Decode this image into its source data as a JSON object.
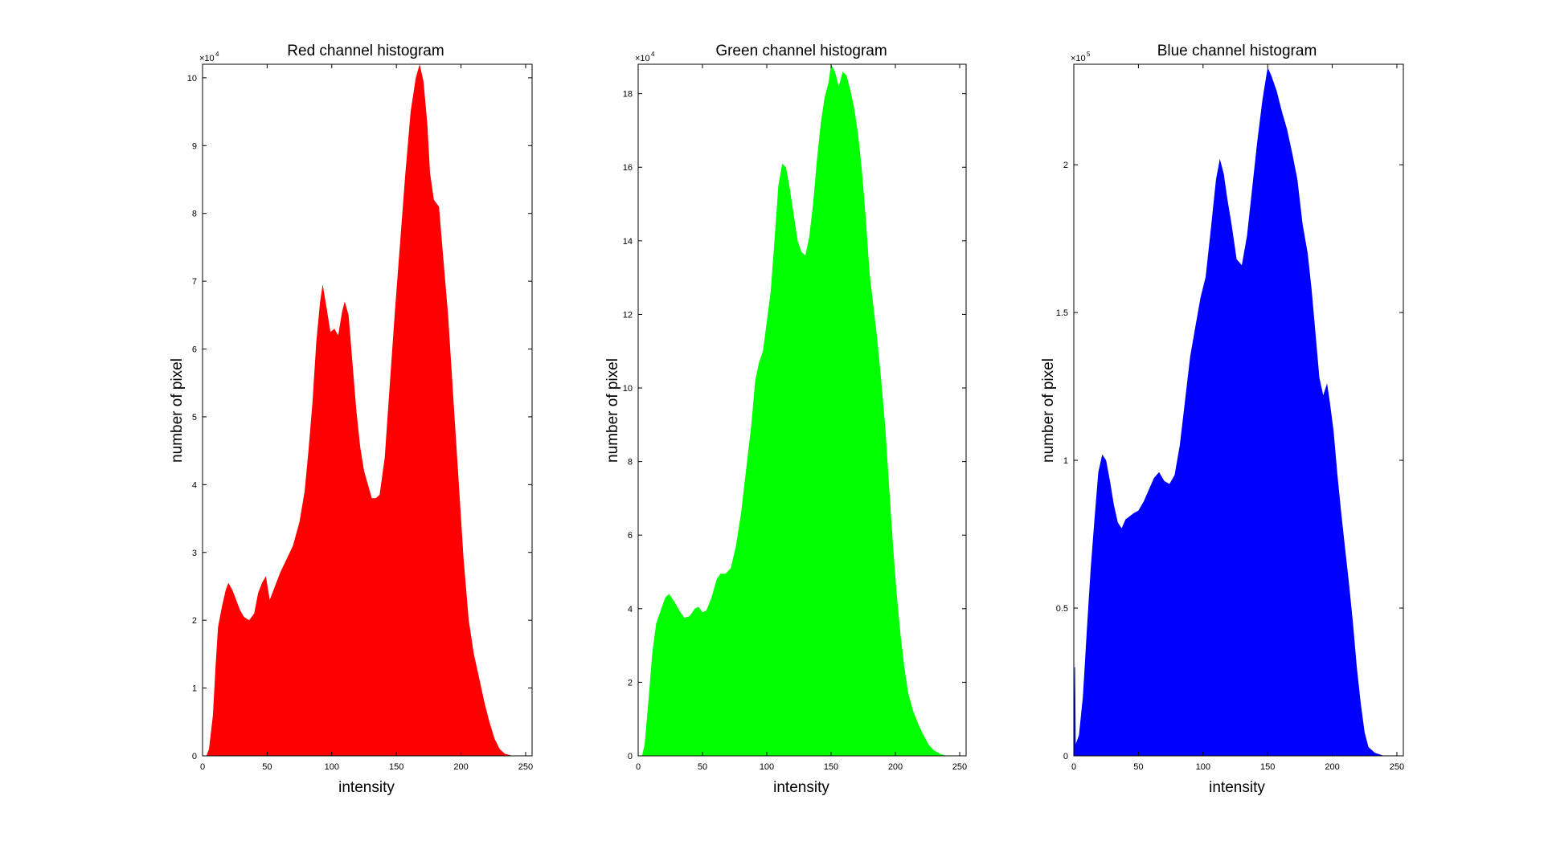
{
  "chart_data": [
    {
      "type": "area",
      "title": "Red channel histogram",
      "xlabel": "intensity",
      "ylabel": "number of pixel",
      "exponent_label": "×10",
      "exponent_value": "4",
      "color": "#ff0000",
      "xlim": [
        0,
        255
      ],
      "ylim": [
        0,
        10.2
      ],
      "x_ticks": [
        0,
        50,
        100,
        150,
        200,
        250
      ],
      "y_ticks": [
        0,
        1,
        2,
        3,
        4,
        5,
        6,
        7,
        8,
        9,
        10
      ],
      "x_tick_labels": [
        "0",
        "50",
        "100",
        "150",
        "200",
        "250"
      ],
      "y_tick_labels": [
        "0",
        "1",
        "2",
        "3",
        "4",
        "5",
        "6",
        "7",
        "8",
        "9",
        "10"
      ],
      "grid": false,
      "points": [
        [
          0,
          0
        ],
        [
          3,
          0
        ],
        [
          5,
          0.1
        ],
        [
          8,
          0.6
        ],
        [
          10,
          1.3
        ],
        [
          12,
          1.9
        ],
        [
          15,
          2.2
        ],
        [
          18,
          2.45
        ],
        [
          20,
          2.55
        ],
        [
          23,
          2.45
        ],
        [
          26,
          2.3
        ],
        [
          29,
          2.15
        ],
        [
          32,
          2.05
        ],
        [
          36,
          2.0
        ],
        [
          40,
          2.1
        ],
        [
          43,
          2.4
        ],
        [
          46,
          2.55
        ],
        [
          49,
          2.65
        ],
        [
          52,
          2.3
        ],
        [
          55,
          2.45
        ],
        [
          60,
          2.7
        ],
        [
          65,
          2.9
        ],
        [
          70,
          3.1
        ],
        [
          75,
          3.45
        ],
        [
          79,
          3.9
        ],
        [
          82,
          4.5
        ],
        [
          85,
          5.2
        ],
        [
          88,
          6.1
        ],
        [
          91,
          6.7
        ],
        [
          93,
          6.95
        ],
        [
          96,
          6.6
        ],
        [
          99,
          6.25
        ],
        [
          102,
          6.3
        ],
        [
          105,
          6.2
        ],
        [
          108,
          6.55
        ],
        [
          110,
          6.7
        ],
        [
          113,
          6.5
        ],
        [
          116,
          5.8
        ],
        [
          119,
          5.1
        ],
        [
          122,
          4.55
        ],
        [
          125,
          4.2
        ],
        [
          128,
          4.0
        ],
        [
          131,
          3.8
        ],
        [
          134,
          3.8
        ],
        [
          137,
          3.85
        ],
        [
          141,
          4.4
        ],
        [
          145,
          5.5
        ],
        [
          149,
          6.6
        ],
        [
          153,
          7.6
        ],
        [
          157,
          8.6
        ],
        [
          161,
          9.5
        ],
        [
          165,
          10.0
        ],
        [
          168,
          10.2
        ],
        [
          171,
          9.95
        ],
        [
          174,
          9.3
        ],
        [
          176,
          8.6
        ],
        [
          179,
          8.2
        ],
        [
          183,
          8.1
        ],
        [
          186,
          7.4
        ],
        [
          190,
          6.5
        ],
        [
          194,
          5.3
        ],
        [
          198,
          4.1
        ],
        [
          202,
          2.9
        ],
        [
          206,
          2.0
        ],
        [
          210,
          1.5
        ],
        [
          214,
          1.15
        ],
        [
          218,
          0.8
        ],
        [
          222,
          0.5
        ],
        [
          226,
          0.25
        ],
        [
          230,
          0.1
        ],
        [
          234,
          0.03
        ],
        [
          240,
          0
        ],
        [
          255,
          0
        ]
      ]
    },
    {
      "type": "area",
      "title": "Green channel histogram",
      "xlabel": "intensity",
      "ylabel": "number of pixel",
      "exponent_label": "×10",
      "exponent_value": "4",
      "color": "#00ff00",
      "xlim": [
        0,
        255
      ],
      "ylim": [
        0,
        18.8
      ],
      "x_ticks": [
        0,
        50,
        100,
        150,
        200,
        250
      ],
      "y_ticks": [
        0,
        2,
        4,
        6,
        8,
        10,
        12,
        14,
        16,
        18
      ],
      "x_tick_labels": [
        "0",
        "50",
        "100",
        "150",
        "200",
        "250"
      ],
      "y_tick_labels": [
        "0",
        "2",
        "4",
        "6",
        "8",
        "10",
        "12",
        "14",
        "16",
        "18"
      ],
      "grid": false,
      "points": [
        [
          0,
          0
        ],
        [
          3,
          0
        ],
        [
          5,
          0.3
        ],
        [
          8,
          1.5
        ],
        [
          11,
          2.8
        ],
        [
          14,
          3.6
        ],
        [
          18,
          4.0
        ],
        [
          21,
          4.3
        ],
        [
          24,
          4.4
        ],
        [
          28,
          4.2
        ],
        [
          32,
          3.95
        ],
        [
          36,
          3.75
        ],
        [
          40,
          3.8
        ],
        [
          44,
          4.0
        ],
        [
          47,
          4.05
        ],
        [
          50,
          3.9
        ],
        [
          53,
          3.95
        ],
        [
          57,
          4.3
        ],
        [
          61,
          4.8
        ],
        [
          64,
          4.95
        ],
        [
          68,
          4.95
        ],
        [
          72,
          5.1
        ],
        [
          76,
          5.7
        ],
        [
          80,
          6.6
        ],
        [
          84,
          7.8
        ],
        [
          88,
          9.0
        ],
        [
          91,
          10.2
        ],
        [
          94,
          10.7
        ],
        [
          97,
          11.0
        ],
        [
          100,
          11.8
        ],
        [
          103,
          12.6
        ],
        [
          106,
          14.0
        ],
        [
          109,
          15.5
        ],
        [
          112,
          16.1
        ],
        [
          115,
          16.0
        ],
        [
          118,
          15.4
        ],
        [
          121,
          14.7
        ],
        [
          124,
          14.0
        ],
        [
          127,
          13.7
        ],
        [
          130,
          13.6
        ],
        [
          133,
          14.1
        ],
        [
          136,
          15.0
        ],
        [
          139,
          16.2
        ],
        [
          142,
          17.2
        ],
        [
          145,
          17.9
        ],
        [
          148,
          18.3
        ],
        [
          150,
          18.8
        ],
        [
          153,
          18.6
        ],
        [
          156,
          18.2
        ],
        [
          159,
          18.6
        ],
        [
          162,
          18.5
        ],
        [
          165,
          18.1
        ],
        [
          168,
          17.6
        ],
        [
          171,
          16.9
        ],
        [
          174,
          15.9
        ],
        [
          177,
          14.6
        ],
        [
          180,
          13.1
        ],
        [
          183,
          12.2
        ],
        [
          186,
          11.3
        ],
        [
          189,
          10.2
        ],
        [
          192,
          9.0
        ],
        [
          195,
          7.4
        ],
        [
          198,
          5.8
        ],
        [
          201,
          4.4
        ],
        [
          204,
          3.3
        ],
        [
          207,
          2.4
        ],
        [
          210,
          1.7
        ],
        [
          214,
          1.2
        ],
        [
          218,
          0.85
        ],
        [
          222,
          0.55
        ],
        [
          226,
          0.3
        ],
        [
          230,
          0.15
        ],
        [
          235,
          0.05
        ],
        [
          240,
          0
        ],
        [
          255,
          0
        ]
      ]
    },
    {
      "type": "area",
      "title": "Blue channel histogram",
      "xlabel": "intensity",
      "ylabel": "number of pixel",
      "exponent_label": "×10",
      "exponent_value": "5",
      "color": "#0000ff",
      "xlim": [
        0,
        255
      ],
      "ylim": [
        0,
        2.34
      ],
      "x_ticks": [
        0,
        50,
        100,
        150,
        200,
        250
      ],
      "y_ticks": [
        0,
        0.5,
        1,
        1.5,
        2
      ],
      "x_tick_labels": [
        "0",
        "50",
        "100",
        "150",
        "200",
        "250"
      ],
      "y_tick_labels": [
        "0",
        "0.5",
        "1",
        "1.5",
        "2"
      ],
      "grid": false,
      "points": [
        [
          0,
          0
        ],
        [
          0.5,
          0.3
        ],
        [
          1,
          0.3
        ],
        [
          1.5,
          0.04
        ],
        [
          4,
          0.07
        ],
        [
          7,
          0.2
        ],
        [
          10,
          0.42
        ],
        [
          13,
          0.63
        ],
        [
          16,
          0.8
        ],
        [
          19,
          0.96
        ],
        [
          22,
          1.02
        ],
        [
          25,
          1.0
        ],
        [
          28,
          0.93
        ],
        [
          31,
          0.85
        ],
        [
          34,
          0.79
        ],
        [
          37,
          0.77
        ],
        [
          40,
          0.8
        ],
        [
          43,
          0.81
        ],
        [
          46,
          0.82
        ],
        [
          50,
          0.83
        ],
        [
          54,
          0.86
        ],
        [
          58,
          0.9
        ],
        [
          62,
          0.94
        ],
        [
          66,
          0.96
        ],
        [
          70,
          0.93
        ],
        [
          74,
          0.92
        ],
        [
          78,
          0.95
        ],
        [
          82,
          1.05
        ],
        [
          86,
          1.2
        ],
        [
          90,
          1.35
        ],
        [
          94,
          1.45
        ],
        [
          98,
          1.55
        ],
        [
          102,
          1.62
        ],
        [
          106,
          1.78
        ],
        [
          110,
          1.95
        ],
        [
          113,
          2.02
        ],
        [
          116,
          1.97
        ],
        [
          119,
          1.88
        ],
        [
          122,
          1.8
        ],
        [
          126,
          1.68
        ],
        [
          130,
          1.66
        ],
        [
          134,
          1.76
        ],
        [
          138,
          1.92
        ],
        [
          142,
          2.08
        ],
        [
          146,
          2.22
        ],
        [
          150,
          2.33
        ],
        [
          153,
          2.3
        ],
        [
          157,
          2.25
        ],
        [
          161,
          2.18
        ],
        [
          165,
          2.12
        ],
        [
          169,
          2.04
        ],
        [
          173,
          1.95
        ],
        [
          177,
          1.8
        ],
        [
          181,
          1.7
        ],
        [
          184,
          1.58
        ],
        [
          187,
          1.43
        ],
        [
          190,
          1.28
        ],
        [
          193,
          1.22
        ],
        [
          196,
          1.26
        ],
        [
          198,
          1.2
        ],
        [
          201,
          1.1
        ],
        [
          204,
          0.95
        ],
        [
          207,
          0.82
        ],
        [
          210,
          0.7
        ],
        [
          213,
          0.58
        ],
        [
          216,
          0.45
        ],
        [
          219,
          0.3
        ],
        [
          222,
          0.18
        ],
        [
          225,
          0.08
        ],
        [
          228,
          0.03
        ],
        [
          233,
          0.01
        ],
        [
          240,
          0
        ],
        [
          250,
          0
        ],
        [
          255,
          0
        ]
      ]
    }
  ]
}
